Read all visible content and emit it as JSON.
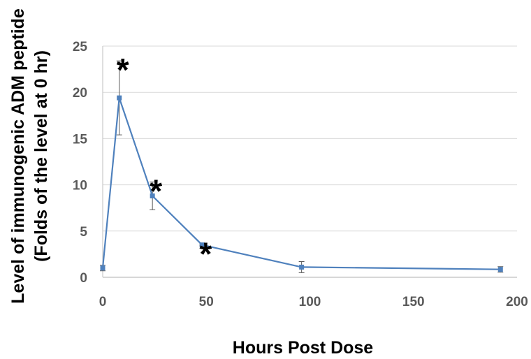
{
  "chart_data": {
    "type": "line",
    "xlabel": "Hours Post Dose",
    "ylabel_line1": "Level of immunogenic ADM peptide",
    "ylabel_line2": "(Folds of the level at 0 hr)",
    "xlim": [
      0,
      200
    ],
    "ylim": [
      0,
      25
    ],
    "x_ticks": [
      0,
      50,
      100,
      150,
      200
    ],
    "y_ticks": [
      0,
      5,
      10,
      15,
      20,
      25
    ],
    "grid": true,
    "series": [
      {
        "color": "#4F81BD",
        "points": [
          {
            "x": 0,
            "y": 1.0,
            "err": 0.3
          },
          {
            "x": 8,
            "y": 19.4,
            "err": 4.0
          },
          {
            "x": 24,
            "y": 8.8,
            "err": 1.5
          },
          {
            "x": 48,
            "y": 3.5,
            "err": 0.1
          },
          {
            "x": 96,
            "y": 1.1,
            "err": 0.6
          },
          {
            "x": 192,
            "y": 0.85,
            "err": 0.3
          }
        ]
      }
    ],
    "annotations": [
      {
        "text": "*",
        "x": 8,
        "y": 23.5
      },
      {
        "text": "*",
        "x": 24,
        "y": 10.4
      },
      {
        "text": "*",
        "x": 48,
        "y": 3.6
      }
    ]
  }
}
